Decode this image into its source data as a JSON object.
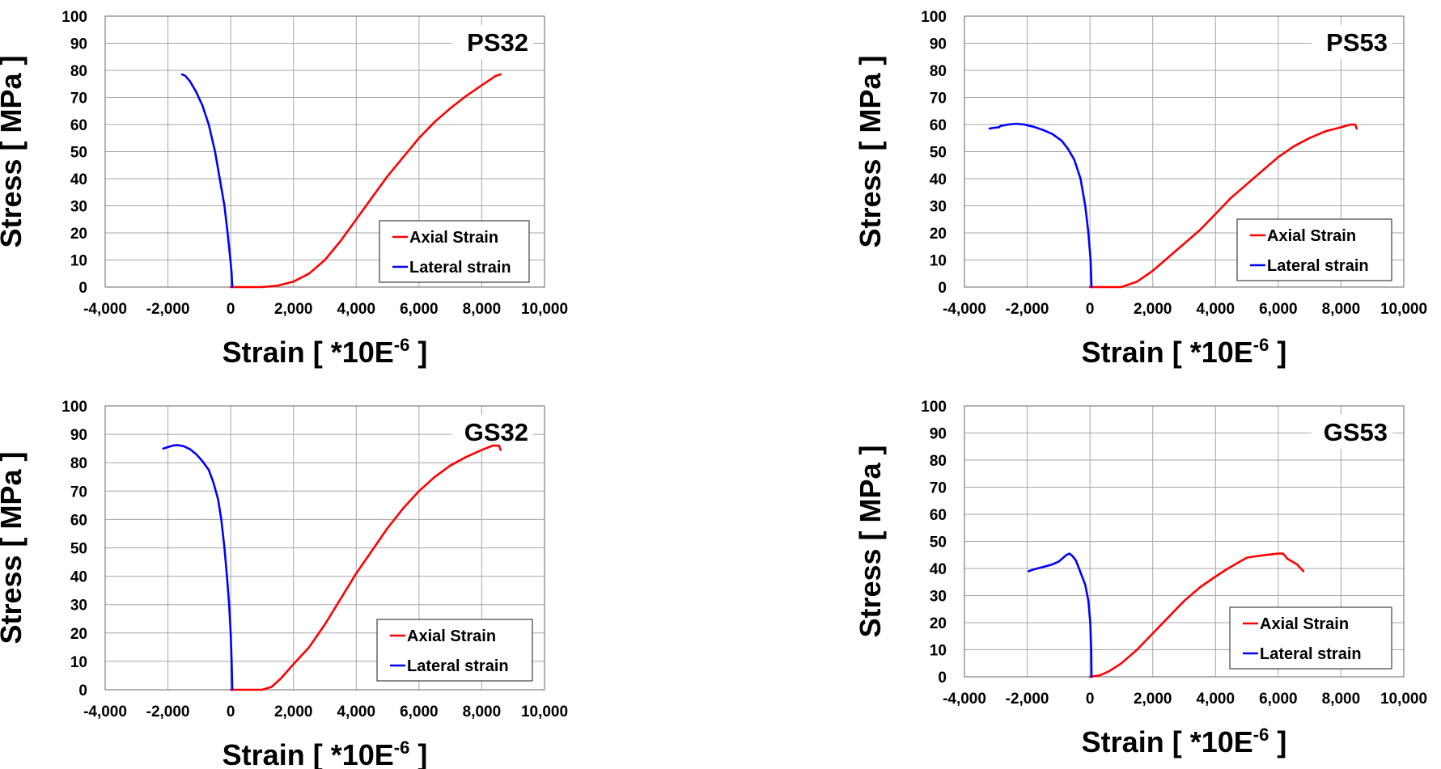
{
  "chart_data": [
    {
      "type": "line",
      "title": "PS32",
      "xlabel": "Strain [ *10E",
      "xlabel_sup": "-6",
      "xlabel_end": " ]",
      "ylabel": "Stress [ MPa ]",
      "xlim": [
        -4000,
        10000
      ],
      "ylim": [
        0,
        100
      ],
      "x_ticks": [
        "-4,000",
        "-2,000",
        "0",
        "2,000",
        "4,000",
        "6,000",
        "8,000",
        "10,000"
      ],
      "y_ticks": [
        "0",
        "10",
        "20",
        "30",
        "40",
        "50",
        "60",
        "70",
        "80",
        "90",
        "100"
      ],
      "grid": true,
      "legend_position": "bottom-right",
      "series": [
        {
          "name": "Axial Strain",
          "color": "#ff0000",
          "x": [
            0,
            500,
            1000,
            1500,
            2000,
            2500,
            3000,
            3500,
            4000,
            4500,
            5000,
            5500,
            6000,
            6500,
            7000,
            7500,
            8000,
            8450,
            8600
          ],
          "y": [
            0,
            0,
            0,
            0.5,
            2,
            5,
            10,
            17,
            25,
            33,
            41,
            48,
            55,
            61,
            66,
            70.5,
            74.5,
            78,
            78.5
          ]
        },
        {
          "name": "Lateral strain",
          "color": "#0000ff",
          "x": [
            50,
            30,
            -10,
            -100,
            -200,
            -350,
            -500,
            -700,
            -900,
            -1100,
            -1300,
            -1450,
            -1550
          ],
          "y": [
            0,
            5,
            10,
            20,
            30,
            40,
            50,
            60,
            67,
            72,
            76,
            78,
            78.5
          ]
        }
      ]
    },
    {
      "type": "line",
      "title": "PS53",
      "xlabel": "Strain [ *10E",
      "xlabel_sup": "-6",
      "xlabel_end": " ]",
      "ylabel": "Stress [ MPa ]",
      "xlim": [
        -4000,
        10000
      ],
      "ylim": [
        0,
        100
      ],
      "x_ticks": [
        "-4,000",
        "-2,000",
        "0",
        "2,000",
        "4,000",
        "6,000",
        "8,000",
        "10,000"
      ],
      "y_ticks": [
        "0",
        "10",
        "20",
        "30",
        "40",
        "50",
        "60",
        "70",
        "80",
        "90",
        "100"
      ],
      "grid": true,
      "legend_position": "bottom-right",
      "series": [
        {
          "name": "Axial Strain",
          "color": "#ff0000",
          "x": [
            0,
            500,
            1000,
            1500,
            2000,
            2500,
            3000,
            3500,
            4000,
            4500,
            5000,
            5500,
            6000,
            6500,
            7000,
            7500,
            8000,
            8300,
            8450,
            8500
          ],
          "y": [
            0,
            0,
            0,
            2,
            6,
            11,
            16,
            21,
            27,
            33,
            38,
            43,
            48,
            52,
            55,
            57.5,
            59,
            60,
            60,
            58.5
          ]
        },
        {
          "name": "Lateral strain",
          "color": "#0000ff",
          "x": [
            50,
            20,
            -50,
            -150,
            -300,
            -500,
            -700,
            -900,
            -1200,
            -1500,
            -1800,
            -2100,
            -2350,
            -2600,
            -2850,
            -2900,
            -3050,
            -3200
          ],
          "y": [
            0,
            10,
            20,
            30,
            40,
            47,
            51,
            54,
            56.5,
            58,
            59.2,
            60,
            60.3,
            60,
            59.5,
            59,
            58.8,
            58.5
          ]
        }
      ]
    },
    {
      "type": "line",
      "title": "GS32",
      "xlabel": "Strain [ *10E",
      "xlabel_sup": "-6",
      "xlabel_end": " ]",
      "ylabel": "Stress [ MPa ]",
      "xlim": [
        -4000,
        10000
      ],
      "ylim": [
        0,
        100
      ],
      "x_ticks": [
        "-4,000",
        "-2,000",
        "0",
        "2,000",
        "4,000",
        "6,000",
        "8,000",
        "10,000"
      ],
      "y_ticks": [
        "0",
        "10",
        "20",
        "30",
        "40",
        "50",
        "60",
        "70",
        "80",
        "90",
        "100"
      ],
      "grid": true,
      "legend_position": "bottom-right",
      "series": [
        {
          "name": "Axial Strain",
          "color": "#ff0000",
          "x": [
            0,
            500,
            1000,
            1300,
            1600,
            2000,
            2500,
            3000,
            3500,
            4000,
            4500,
            5000,
            5500,
            6000,
            6500,
            7000,
            7500,
            8000,
            8350,
            8550,
            8600
          ],
          "y": [
            0,
            0,
            0,
            1,
            4,
            9,
            15,
            23,
            32,
            41,
            49,
            57,
            64,
            70,
            75,
            79,
            82,
            84.5,
            86,
            86,
            84.5
          ]
        },
        {
          "name": "Lateral strain",
          "color": "#0000ff",
          "x": [
            50,
            30,
            0,
            -50,
            -120,
            -200,
            -300,
            -400,
            -550,
            -700,
            -900,
            -1100,
            -1300,
            -1500,
            -1700,
            -1850,
            -2000,
            -2150
          ],
          "y": [
            0,
            10,
            20,
            30,
            40,
            50,
            60,
            67,
            73,
            77.5,
            80.5,
            83,
            84.8,
            85.8,
            86.2,
            86,
            85.5,
            85
          ]
        }
      ]
    },
    {
      "type": "line",
      "title": "GS53",
      "xlabel": "Strain [ *10E",
      "xlabel_sup": "-6",
      "xlabel_end": " ]",
      "ylabel": "Stress [ MPa ]",
      "xlim": [
        -4000,
        10000
      ],
      "ylim": [
        0,
        100
      ],
      "x_ticks": [
        "-4,000",
        "-2,000",
        "0",
        "2,000",
        "4,000",
        "6,000",
        "8,000",
        "10,000"
      ],
      "y_ticks": [
        "0",
        "10",
        "20",
        "30",
        "40",
        "50",
        "60",
        "70",
        "80",
        "90",
        "100"
      ],
      "grid": true,
      "legend_position": "bottom-right",
      "series": [
        {
          "name": "Axial Strain",
          "color": "#ff0000",
          "x": [
            0,
            300,
            600,
            1000,
            1500,
            2000,
            2500,
            3000,
            3500,
            4000,
            4400,
            4700,
            5000,
            5300,
            5600,
            6000,
            6150,
            6300,
            6600,
            6800
          ],
          "y": [
            0,
            0.5,
            2,
            5,
            10,
            16,
            22,
            28,
            33,
            37,
            40,
            42,
            44,
            44.5,
            45,
            45.5,
            45.5,
            43.5,
            41.5,
            39
          ]
        },
        {
          "name": "Lateral strain",
          "color": "#0000ff",
          "x": [
            50,
            40,
            10,
            -50,
            -150,
            -250,
            -350,
            -450,
            -550,
            -650,
            -750,
            -850,
            -1000,
            -1200,
            -1400,
            -1600,
            -1800,
            -1950
          ],
          "y": [
            0,
            10,
            20,
            28,
            34,
            37,
            40,
            43,
            44.5,
            45.5,
            45,
            44,
            42.5,
            41.5,
            40.8,
            40.2,
            39.6,
            39
          ]
        }
      ]
    }
  ]
}
